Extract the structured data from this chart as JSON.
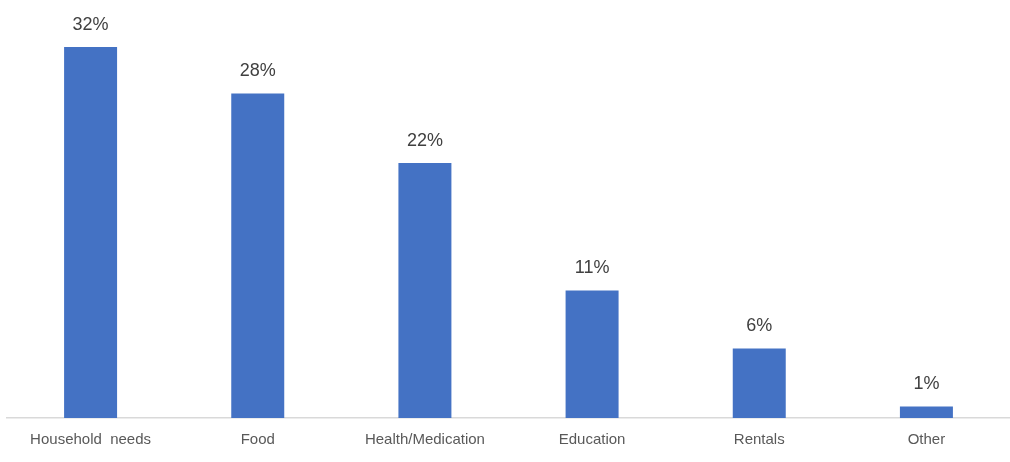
{
  "chart_data": {
    "type": "bar",
    "categories": [
      "Household  needs",
      "Food",
      "Health/Medication",
      "Education",
      "Rentals",
      "Other"
    ],
    "values": [
      32,
      28,
      22,
      11,
      6,
      1
    ],
    "color": "#4472c4",
    "value_labels": [
      "32%",
      "28%",
      "22%",
      "11%",
      "6%",
      "1%"
    ]
  }
}
